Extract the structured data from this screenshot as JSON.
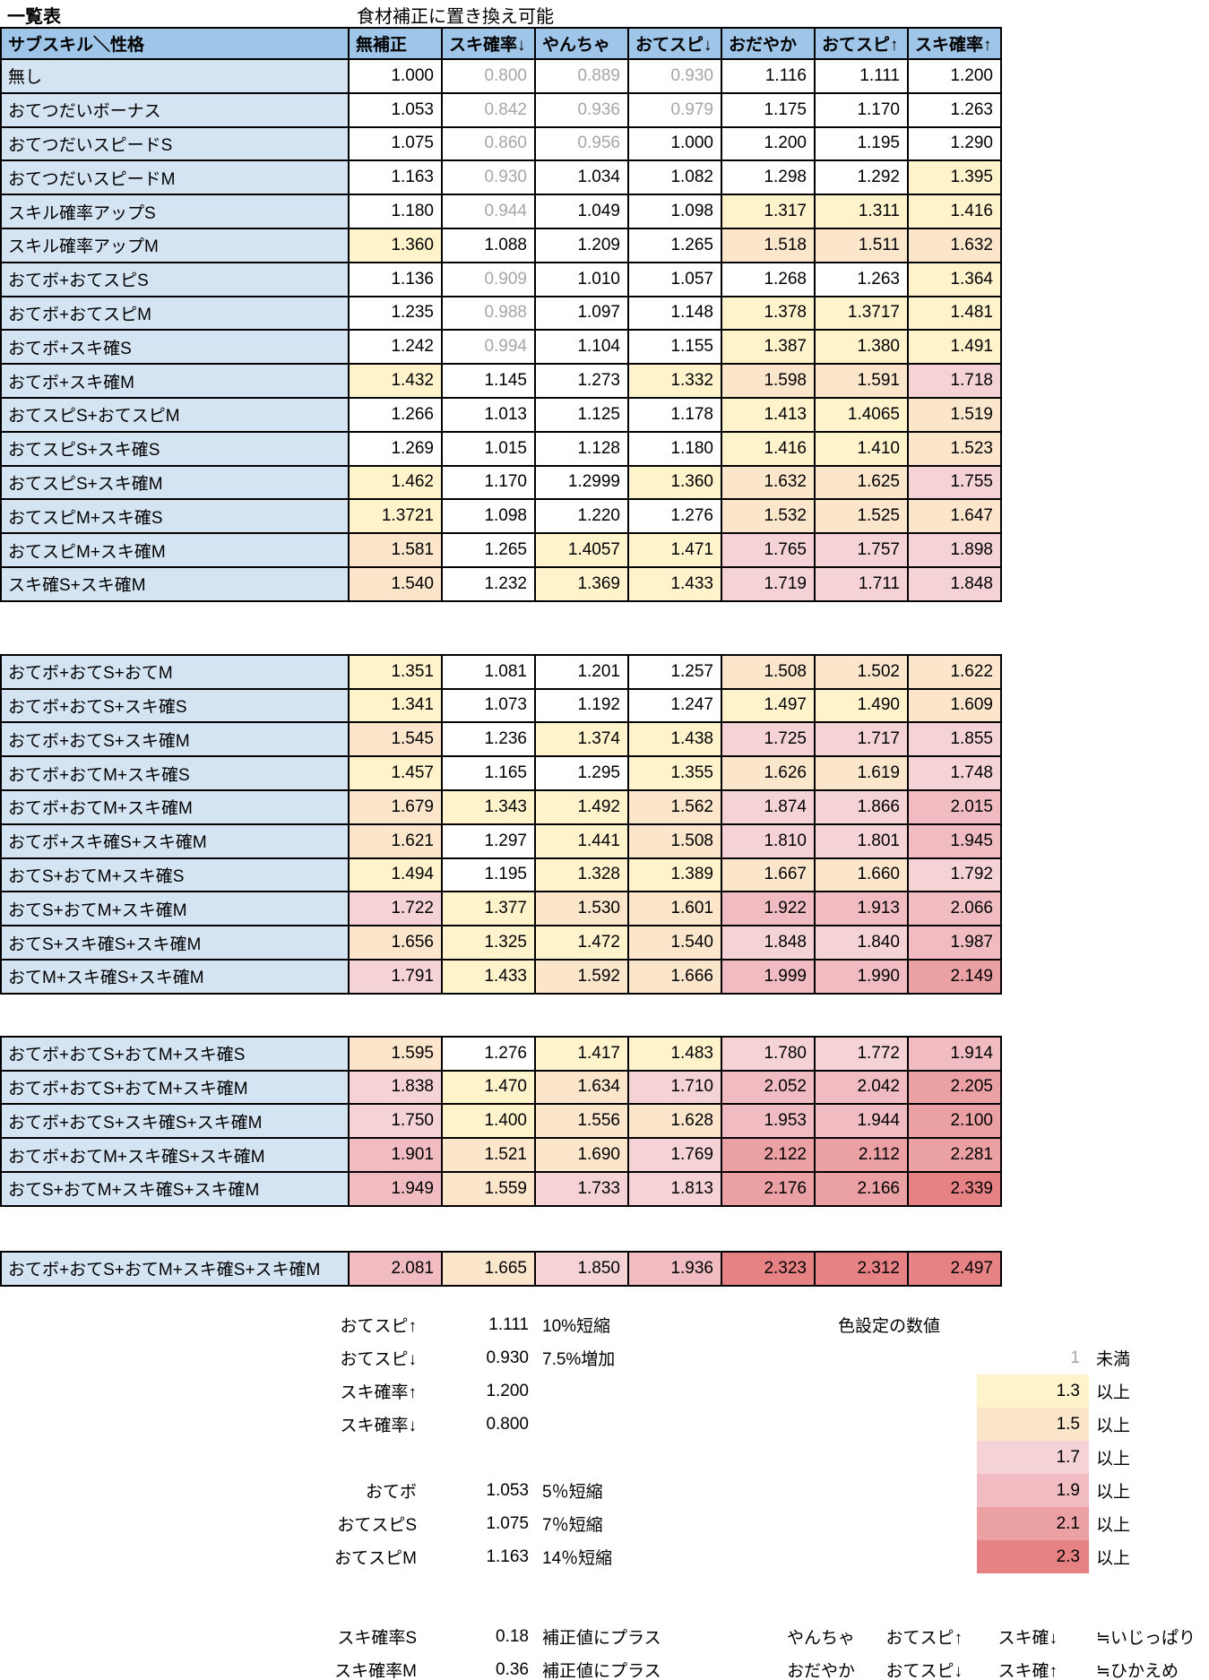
{
  "title": "一覧表",
  "subtitle": "食材補正に置き換え可能",
  "table": {
    "corner_header": "サブスキル＼性格",
    "columns": [
      "無補正",
      "スキ確率↓",
      "やんちゃ",
      "おてスピ↓",
      "おだやか",
      "おてスピ↑",
      "スキ確率↑"
    ],
    "sections": [
      {
        "rows": [
          {
            "label": "無し",
            "values": [
              "1.000",
              "0.800",
              "0.889",
              "0.930",
              "1.116",
              "1.111",
              "1.200"
            ]
          },
          {
            "label": "おてつだいボーナス",
            "values": [
              "1.053",
              "0.842",
              "0.936",
              "0.979",
              "1.175",
              "1.170",
              "1.263"
            ]
          },
          {
            "label": "おてつだいスピードS",
            "values": [
              "1.075",
              "0.860",
              "0.956",
              "1.000",
              "1.200",
              "1.195",
              "1.290"
            ]
          },
          {
            "label": "おてつだいスピードM",
            "values": [
              "1.163",
              "0.930",
              "1.034",
              "1.082",
              "1.298",
              "1.292",
              "1.395"
            ]
          },
          {
            "label": "スキル確率アップS",
            "values": [
              "1.180",
              "0.944",
              "1.049",
              "1.098",
              "1.317",
              "1.311",
              "1.416"
            ]
          },
          {
            "label": "スキル確率アップM",
            "values": [
              "1.360",
              "1.088",
              "1.209",
              "1.265",
              "1.518",
              "1.511",
              "1.632"
            ]
          },
          {
            "label": "おてボ+おてスピS",
            "values": [
              "1.136",
              "0.909",
              "1.010",
              "1.057",
              "1.268",
              "1.263",
              "1.364"
            ]
          },
          {
            "label": "おてボ+おてスピM",
            "values": [
              "1.235",
              "0.988",
              "1.097",
              "1.148",
              "1.378",
              "1.3717",
              "1.481"
            ]
          },
          {
            "label": "おてボ+スキ確S",
            "values": [
              "1.242",
              "0.994",
              "1.104",
              "1.155",
              "1.387",
              "1.380",
              "1.491"
            ]
          },
          {
            "label": "おてボ+スキ確M",
            "values": [
              "1.432",
              "1.145",
              "1.273",
              "1.332",
              "1.598",
              "1.591",
              "1.718"
            ]
          },
          {
            "label": "おてスピS+おてスピM",
            "values": [
              "1.266",
              "1.013",
              "1.125",
              "1.178",
              "1.413",
              "1.4065",
              "1.519"
            ]
          },
          {
            "label": "おてスピS+スキ確S",
            "values": [
              "1.269",
              "1.015",
              "1.128",
              "1.180",
              "1.416",
              "1.410",
              "1.523"
            ]
          },
          {
            "label": "おてスピS+スキ確M",
            "values": [
              "1.462",
              "1.170",
              "1.2999",
              "1.360",
              "1.632",
              "1.625",
              "1.755"
            ]
          },
          {
            "label": "おてスピM+スキ確S",
            "values": [
              "1.3721",
              "1.098",
              "1.220",
              "1.276",
              "1.532",
              "1.525",
              "1.647"
            ]
          },
          {
            "label": "おてスピM+スキ確M",
            "values": [
              "1.581",
              "1.265",
              "1.4057",
              "1.471",
              "1.765",
              "1.757",
              "1.898"
            ]
          },
          {
            "label": "スキ確S+スキ確M",
            "values": [
              "1.540",
              "1.232",
              "1.369",
              "1.433",
              "1.719",
              "1.711",
              "1.848"
            ]
          }
        ]
      },
      {
        "rows": [
          {
            "label": "おてボ+おてS+おてM",
            "values": [
              "1.351",
              "1.081",
              "1.201",
              "1.257",
              "1.508",
              "1.502",
              "1.622"
            ]
          },
          {
            "label": "おてボ+おてS+スキ確S",
            "values": [
              "1.341",
              "1.073",
              "1.192",
              "1.247",
              "1.497",
              "1.490",
              "1.609"
            ]
          },
          {
            "label": "おてボ+おてS+スキ確M",
            "values": [
              "1.545",
              "1.236",
              "1.374",
              "1.438",
              "1.725",
              "1.717",
              "1.855"
            ]
          },
          {
            "label": "おてボ+おてM+スキ確S",
            "values": [
              "1.457",
              "1.165",
              "1.295",
              "1.355",
              "1.626",
              "1.619",
              "1.748"
            ]
          },
          {
            "label": "おてボ+おてM+スキ確M",
            "values": [
              "1.679",
              "1.343",
              "1.492",
              "1.562",
              "1.874",
              "1.866",
              "2.015"
            ]
          },
          {
            "label": "おてボ+スキ確S+スキ確M",
            "values": [
              "1.621",
              "1.297",
              "1.441",
              "1.508",
              "1.810",
              "1.801",
              "1.945"
            ]
          },
          {
            "label": "おてS+おてM+スキ確S",
            "values": [
              "1.494",
              "1.195",
              "1.328",
              "1.389",
              "1.667",
              "1.660",
              "1.792"
            ]
          },
          {
            "label": "おてS+おてM+スキ確M",
            "values": [
              "1.722",
              "1.377",
              "1.530",
              "1.601",
              "1.922",
              "1.913",
              "2.066"
            ]
          },
          {
            "label": "おてS+スキ確S+スキ確M",
            "values": [
              "1.656",
              "1.325",
              "1.472",
              "1.540",
              "1.848",
              "1.840",
              "1.987"
            ]
          },
          {
            "label": "おてM+スキ確S+スキ確M",
            "values": [
              "1.791",
              "1.433",
              "1.592",
              "1.666",
              "1.999",
              "1.990",
              "2.149"
            ]
          }
        ]
      },
      {
        "rows": [
          {
            "label": "おてボ+おてS+おてM+スキ確S",
            "values": [
              "1.595",
              "1.276",
              "1.417",
              "1.483",
              "1.780",
              "1.772",
              "1.914"
            ]
          },
          {
            "label": "おてボ+おてS+おてM+スキ確M",
            "values": [
              "1.838",
              "1.470",
              "1.634",
              "1.710",
              "2.052",
              "2.042",
              "2.205"
            ]
          },
          {
            "label": "おてボ+おてS+スキ確S+スキ確M",
            "values": [
              "1.750",
              "1.400",
              "1.556",
              "1.628",
              "1.953",
              "1.944",
              "2.100"
            ]
          },
          {
            "label": "おてボ+おてM+スキ確S+スキ確M",
            "values": [
              "1.901",
              "1.521",
              "1.690",
              "1.769",
              "2.122",
              "2.112",
              "2.281"
            ]
          },
          {
            "label": "おてS+おてM+スキ確S+スキ確M",
            "values": [
              "1.949",
              "1.559",
              "1.733",
              "1.813",
              "2.176",
              "2.166",
              "2.339"
            ]
          }
        ]
      },
      {
        "rows": [
          {
            "label": "おてボ+おてS+おてM+スキ確S+スキ確M",
            "values": [
              "2.081",
              "1.665",
              "1.850",
              "1.936",
              "2.323",
              "2.312",
              "2.497"
            ]
          }
        ]
      }
    ]
  },
  "colors": {
    "header_bg": "#9FC5E8",
    "label_bg": "#D4E4F3",
    "gray_text": "#A6A6A6",
    "rules": [
      {
        "min": 2.3,
        "bg": "#E78284"
      },
      {
        "min": 2.1,
        "bg": "#EBA0A3"
      },
      {
        "min": 1.9,
        "bg": "#F0BCC1"
      },
      {
        "min": 1.7,
        "bg": "#F5D2D5"
      },
      {
        "min": 1.5,
        "bg": "#FBE5CB"
      },
      {
        "min": 1.3,
        "bg": "#FFF3CC"
      },
      {
        "min": 1.0,
        "bg": "#FFFFFF"
      },
      {
        "min": 0.0,
        "bg": "#FFFFFF",
        "text": "#A6A6A6"
      }
    ]
  },
  "legend_left": {
    "group1": [
      {
        "label": "おてスピ↑",
        "value": "1.111",
        "note": "10%短縮"
      },
      {
        "label": "おてスピ↓",
        "value": "0.930",
        "note": "7.5%増加"
      },
      {
        "label": "スキ確率↑",
        "value": "1.200",
        "note": ""
      },
      {
        "label": "スキ確率↓",
        "value": "0.800",
        "note": ""
      }
    ],
    "group2": [
      {
        "label": "おてボ",
        "value": "1.053",
        "note": "5％短縮"
      },
      {
        "label": "おてスピS",
        "value": "1.075",
        "note": "7％短縮"
      },
      {
        "label": "おてスピM",
        "value": "1.163",
        "note": "14％短縮"
      }
    ],
    "group3": [
      {
        "label": "スキ確率S",
        "value": "0.18",
        "note": "補正値にプラス"
      },
      {
        "label": "スキ確率M",
        "value": "0.36",
        "note": "補正値にプラス"
      }
    ]
  },
  "color_legend": {
    "title": "色設定の数値",
    "entries": [
      {
        "value": "1",
        "label": "未満",
        "bg": "",
        "text": "#A6A6A6"
      },
      {
        "value": "1.3",
        "label": "以上",
        "bg": "#FFF3CC",
        "text": "#000000"
      },
      {
        "value": "1.5",
        "label": "以上",
        "bg": "#FBE5CB",
        "text": "#000000"
      },
      {
        "value": "1.7",
        "label": "以上",
        "bg": "#F5D2D5",
        "text": "#000000"
      },
      {
        "value": "1.9",
        "label": "以上",
        "bg": "#F0BCC1",
        "text": "#000000"
      },
      {
        "value": "2.1",
        "label": "以上",
        "bg": "#EBA0A3",
        "text": "#000000"
      },
      {
        "value": "2.3",
        "label": "以上",
        "bg": "#E78284",
        "text": "#000000"
      }
    ]
  },
  "nature_notes": [
    {
      "cols": [
        "やんちゃ",
        "おてスピ↑",
        "スキ確↓"
      ],
      "eq": "≒いじっぱり"
    },
    {
      "cols": [
        "おだやか",
        "おてスピ↓",
        "スキ確↑"
      ],
      "eq": "≒ひかえめ"
    }
  ]
}
